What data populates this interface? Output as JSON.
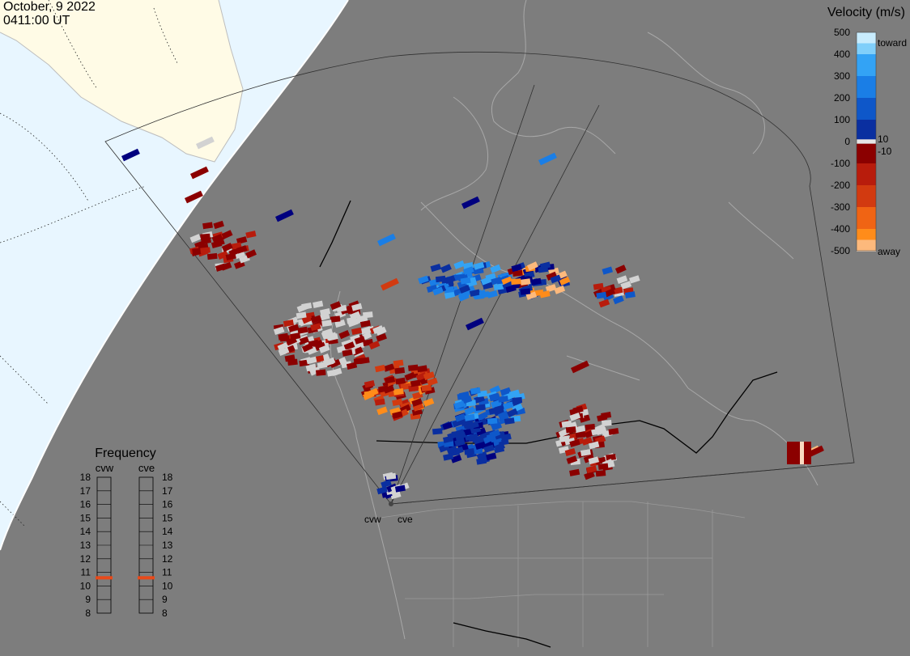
{
  "header": {
    "date": "October, 9 2022",
    "time": "0411:00 UT"
  },
  "colorbar": {
    "title": "Velocity (m/s)",
    "ticks": [
      "500",
      "400",
      "300",
      "200",
      "100",
      "0",
      "-100",
      "-200",
      "-300",
      "-400",
      "-500"
    ],
    "toward_label": "toward",
    "away_label": "away",
    "plus_threshold": "10",
    "minus_threshold": "-10",
    "colors": [
      "#f9d9c0",
      "#fdb97c",
      "#ff8c1a",
      "#f06414",
      "#d23a10",
      "#b81c0c",
      "#8b0000",
      "#e6e6e6",
      "#00007f",
      "#0a2fa0",
      "#0e57c9",
      "#1a7ee6",
      "#33a3f5",
      "#80cffa",
      "#c8ecfd"
    ]
  },
  "frequency_panel": {
    "title": "Frequency",
    "radars": [
      {
        "name": "cvw",
        "value_mhz": 10.6
      },
      {
        "name": "cve",
        "value_mhz": 10.6
      }
    ],
    "ticks": [
      "18",
      "17",
      "16",
      "15",
      "14",
      "13",
      "12",
      "11",
      "10",
      "9",
      "8"
    ],
    "marker_color": "#e84a1a"
  },
  "sites": {
    "west": "cvw",
    "east": "cve"
  },
  "map_colors": {
    "ocean": "#7d7d7d",
    "night_shadow": "#7d7d7d",
    "daylight_ocean": "#e8f6ff",
    "daylight_land": "#fffbe6",
    "coastline": "#a8a8a8",
    "field_of_view": "#303030"
  }
}
